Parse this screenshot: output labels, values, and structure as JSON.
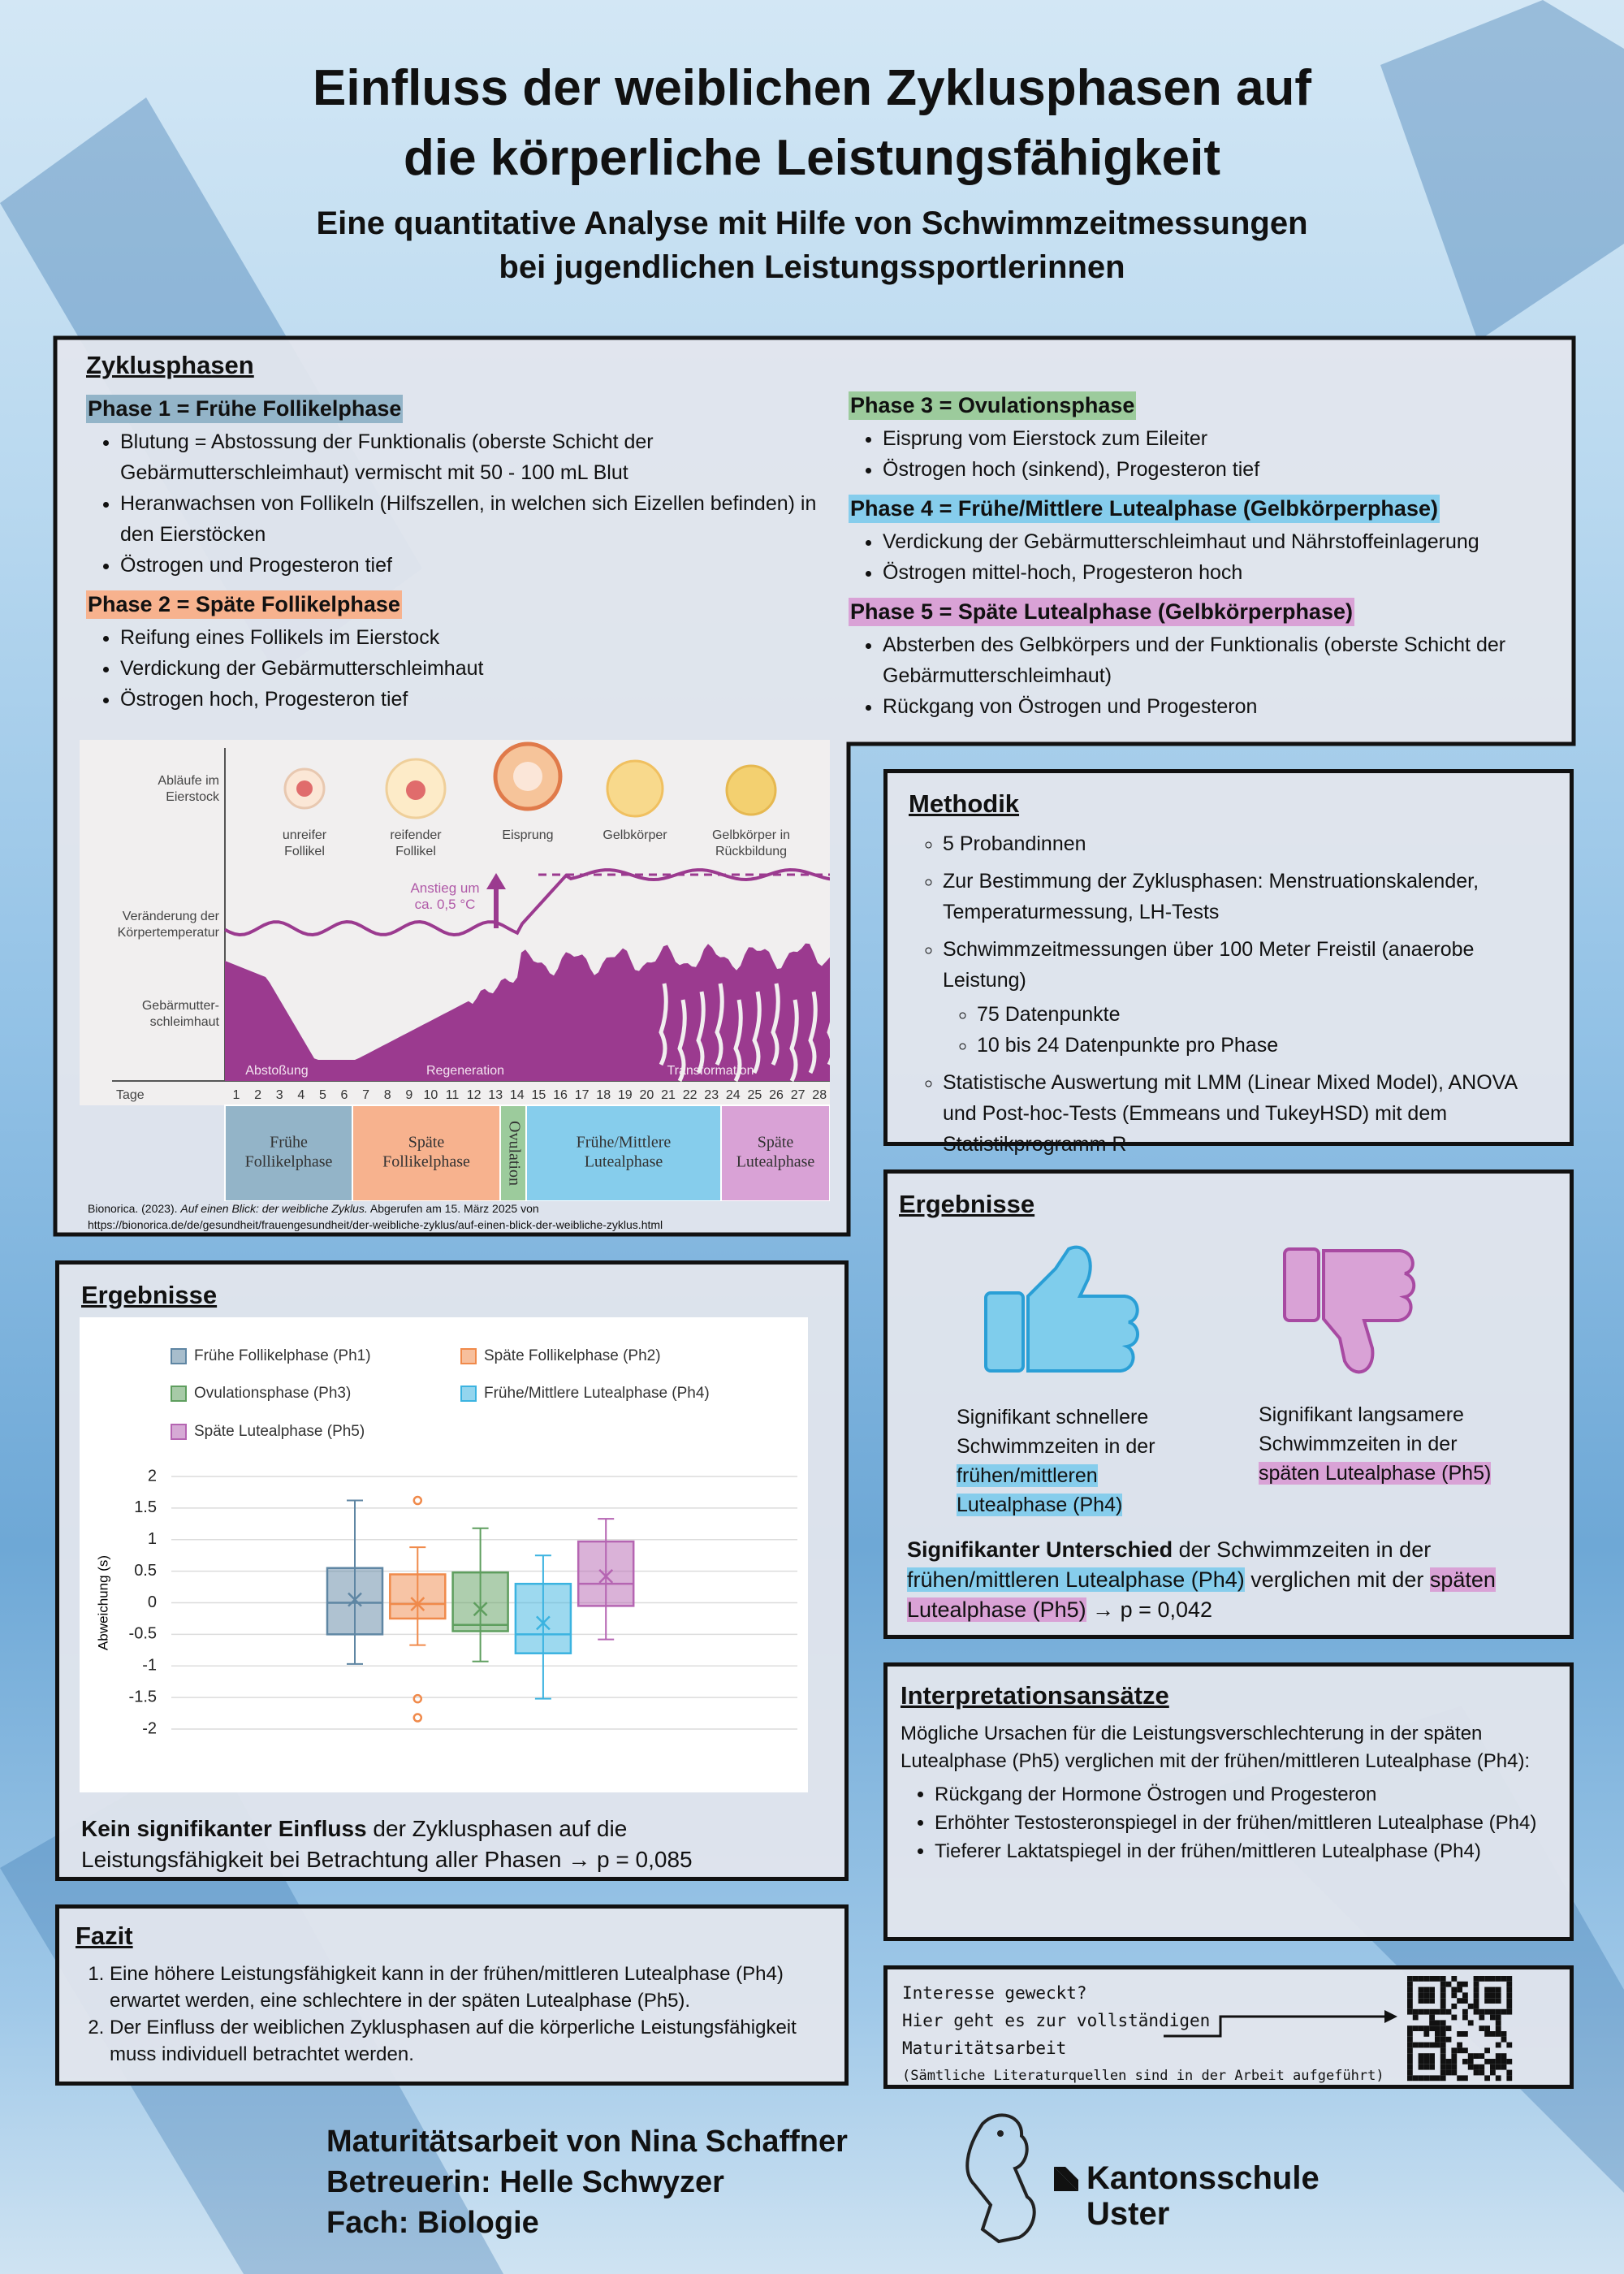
{
  "header": {
    "title": [
      "Einfluss der weiblichen Zyklusphasen auf",
      "die körperliche Leistungsfähigkeit"
    ],
    "subtitle": [
      "Eine quantitative Analyse mit Hilfe von Schwimmzeitmessungen",
      "bei jugendlichen Leistungssportlerinnen"
    ]
  },
  "zyklusphasen": {
    "heading": "Zyklusphasen",
    "phases": [
      {
        "title": "Phase 1 = Frühe Follikelphase",
        "items": [
          "Blutung = Abstossung der Funktionalis (oberste Schicht der Gebärmutterschleimhaut) vermischt mit 50 - 100 mL Blut",
          "Heranwachsen von Follikeln (Hilfszellen, in welchen sich Eizellen befinden) in den Eierstöcken",
          "Östrogen und Progesteron tief"
        ]
      },
      {
        "title": "Phase 2 = Späte Follikelphase",
        "items": [
          "Reifung eines Follikels im Eierstock",
          "Verdickung der Gebärmutterschleimhaut",
          "Östrogen hoch, Progesteron tief"
        ]
      },
      {
        "title": "Phase 3 = Ovulationsphase",
        "items": [
          "Eisprung vom Eierstock zum Eileiter",
          "Östrogen hoch (sinkend), Progesteron tief"
        ]
      },
      {
        "title": "Phase 4 = Frühe/Mittlere Lutealphase (Gelbkörperphase)",
        "items": [
          "Verdickung der Gebärmutterschleimhaut und Nährstoffeinlagerung",
          "Östrogen mittel-hoch, Progesteron hoch"
        ]
      },
      {
        "title": "Phase 5 = Späte Lutealphase (Gelbkörperphase)",
        "items": [
          "Absterben des Gelbkörpers und der Funktionalis (oberste Schicht der Gebärmutterschleimhaut)",
          "Rückgang von Östrogen und Progesteron"
        ]
      }
    ]
  },
  "cycle_figure": {
    "row_labels": [
      [
        "Abläufe im",
        "Eierstock"
      ],
      [
        "Veränderung der",
        "Körpertemperatur"
      ],
      [
        "Gebärmutter-",
        "schleimhaut"
      ]
    ],
    "ovary_labels": [
      [
        "unreifer",
        "Follikel"
      ],
      [
        "reifender",
        "Follikel"
      ],
      [
        "Eisprung"
      ],
      [
        "Gelbkörper"
      ],
      [
        "Gelbkörper in",
        "Rückbildung"
      ]
    ],
    "temp_annotation": [
      "Anstieg um",
      "ca. 0,5 °C"
    ],
    "stage_labels": [
      "Abstoßung",
      "Regeneration",
      "Transformation"
    ],
    "days_label": "Tage",
    "days": [
      1,
      2,
      3,
      4,
      5,
      6,
      7,
      8,
      9,
      10,
      11,
      12,
      13,
      14,
      15,
      16,
      17,
      18,
      19,
      20,
      21,
      22,
      23,
      24,
      25,
      26,
      27,
      28
    ],
    "phases": [
      [
        "Frühe",
        "Follikelphase"
      ],
      [
        "Späte",
        "Follikelphase"
      ],
      [
        "Ovulation"
      ],
      [
        "Frühe/Mittlere",
        "Lutealphase"
      ],
      [
        "Späte",
        "Lutealphase"
      ]
    ],
    "citation": {
      "author": "Bionorica. (2023). ",
      "title": "Auf einen Blick: der weibliche Zyklus.",
      "rest": " Abgerufen am 15. März 2025 von",
      "url": "https://bionorica.de/de/gesundheit/frauengesundheit/der-weibliche-zyklus/auf-einen-blick-der-weibliche-zyklus.html"
    }
  },
  "methodik": {
    "heading": "Methodik",
    "items": [
      "5 Probandinnen",
      "Zur Bestimmung der Zyklusphasen: Menstruationskalender, Temperaturmessung, LH-Tests",
      "Schwimmzeitmessungen über 100 Meter Freistil (anaerobe Leistung)",
      "Statistische Auswertung mit LMM (Linear Mixed Model), ANOVA und Post-hoc-Tests (Emmeans und TukeyHSD) mit dem Statistikprogramm R"
    ],
    "subitems": [
      "75 Datenpunkte",
      "10 bis 24 Datenpunkte pro Phase"
    ]
  },
  "ergebnisse_right": {
    "heading": "Ergebnisse",
    "up": [
      "Signifikant schnellere Schwimmzeiten in der ",
      "frühen/mittleren Lutealphase (Ph4)"
    ],
    "down": [
      "Signifikant langsamere Schwimmzeiten in der ",
      "späten Lutealphase (Ph5)"
    ],
    "summary": [
      "Signifikanter Unterschied",
      " der Schwimmzeiten in der ",
      "frühen/mittleren Lutealphase (Ph4)",
      " verglichen mit der ",
      "späten Lutealphase (Ph5)",
      " → p = 0,042"
    ]
  },
  "interpretation": {
    "heading": "Interpretationsansätze",
    "intro": "Mögliche Ursachen für die Leistungsverschlechterung in der späten Lutealphase (Ph5) verglichen mit der frühen/mittleren Lutealphase (Ph4):",
    "items": [
      "Rückgang der Hormone Östrogen und Progesteron",
      "Erhöhter Testosteronspiegel in der frühen/mittleren Lutealphase (Ph4)",
      "Tieferer Laktatspiegel in der frühen/mittleren Lutealphase (Ph4)"
    ]
  },
  "ergebnisse_left": {
    "heading": "Ergebnisse",
    "conclusion": [
      "Kein signifikanter Einfluss",
      " der Zyklusphasen auf die Leistungsfähigkeit bei Betrachtung aller Phasen → p = 0,085"
    ]
  },
  "fazit": {
    "heading": "Fazit",
    "items": [
      "Eine höhere Leistungsfähigkeit kann in der frühen/mittleren Lutealphase (Ph4) erwartet werden, eine schlechtere in der späten Lutealphase (Ph5).",
      "Der Einfluss der weiblichen Zyklusphasen auf die körperliche Leistungsfähigkeit muss individuell betrachtet werden."
    ]
  },
  "qr": {
    "lines": [
      "Interesse geweckt?",
      "Hier geht es zur vollständigen",
      "Maturitätsarbeit",
      "(Sämtliche Literaturquellen sind in der Arbeit aufgeführt)"
    ]
  },
  "footer": {
    "lines": [
      "Maturitätsarbeit von Nina Schaffner",
      "Betreuerin: Helle Schwyzer",
      "Fach: Biologie"
    ],
    "school": [
      "Kantonsschule",
      "Uster"
    ]
  },
  "chart_data": {
    "type": "box",
    "y_label": "Abweichung (s)",
    "ylim": [
      -2,
      2
    ],
    "yticks": [
      -2,
      -1.5,
      -1,
      -0.5,
      0,
      0.5,
      1,
      1.5,
      2
    ],
    "grid": true,
    "legend": "top",
    "series": [
      {
        "name": "Frühe Follikelphase (Ph1)",
        "color": "#5f86a3",
        "min": -0.97,
        "q1": -0.5,
        "median": 0,
        "q3": 0.55,
        "max": 1.62,
        "mean": 0.05
      },
      {
        "name": "Späte Follikelphase (Ph2)",
        "color": "#f08a4b",
        "min": -0.67,
        "q1": -0.25,
        "median": -0.02,
        "q3": 0.45,
        "max": 0.88,
        "mean": -0.02,
        "outliers": [
          1.62,
          -1.52,
          -1.82
        ]
      },
      {
        "name": "Ovulationsphase (Ph3)",
        "color": "#5e9e5e",
        "min": -0.93,
        "q1": -0.45,
        "median": -0.35,
        "q3": 0.48,
        "max": 1.18,
        "mean": -0.1
      },
      {
        "name": "Frühe/Mittlere Lutealphase (Ph4)",
        "color": "#3bb3e0",
        "min": -1.52,
        "q1": -0.8,
        "median": -0.5,
        "q3": 0.3,
        "max": 0.75,
        "mean": -0.32
      },
      {
        "name": "Späte Lutealphase (Ph5)",
        "color": "#b565b2",
        "min": -0.58,
        "q1": -0.05,
        "median": 0.3,
        "q3": 0.97,
        "max": 1.33,
        "mean": 0.42
      }
    ]
  }
}
